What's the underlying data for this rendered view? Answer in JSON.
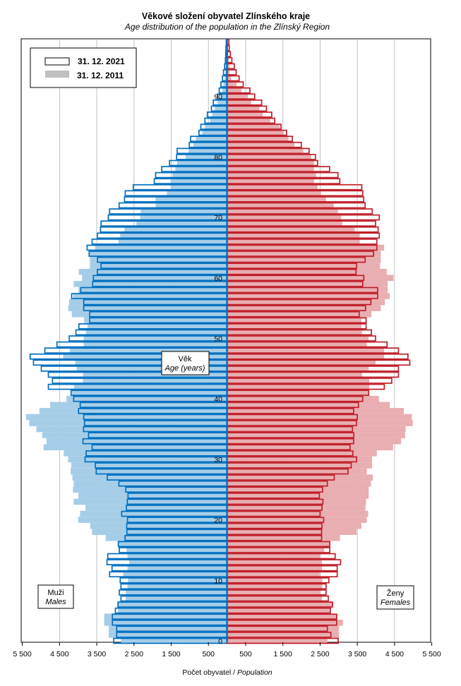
{
  "chart_data": {
    "type": "bar",
    "orientation": "horizontal-population-pyramid",
    "title": "Věkové složení obyvatel Zlínského kraje",
    "subtitle": "Age distribution of the population  in the Zlínský Region",
    "xlabel_cz": "Počet obyvatel /",
    "xlabel_en": "Population",
    "ylabel_cz": "Věk",
    "ylabel_en": "Age (years)",
    "left_label_cz": "Muži",
    "left_label_en": "Males",
    "right_label_cz": "Ženy",
    "right_label_en": "Females",
    "xlim": [
      -5500,
      5500
    ],
    "x_tick_values": [
      -5500,
      -4500,
      -3500,
      -2500,
      -1500,
      -500,
      500,
      1500,
      2500,
      3500,
      4500,
      5500
    ],
    "x_tick_labels": [
      "5 500",
      "4 500",
      "3 500",
      "2 500",
      "1 500",
      "500",
      "500",
      "1 500",
      "2 500",
      "3 500",
      "4 500",
      "5 500"
    ],
    "y_tick_labels": [
      "0",
      "10",
      "20",
      "30",
      "40",
      "50",
      "60",
      "70",
      "80",
      "90"
    ],
    "grid": true,
    "legend_position": "top-left",
    "legend": [
      {
        "label": "31. 12. 2021",
        "style": "outline"
      },
      {
        "label": "31. 12. 2011",
        "style": "filled"
      }
    ],
    "colors": {
      "male_fill": "#a6cde8",
      "male_outline": "#0070c0",
      "female_fill": "#e8aeb2",
      "female_outline": "#c0202a",
      "grid": "#c0c0c0"
    },
    "age_start": 0,
    "series": [
      {
        "name": "31. 12. 2021",
        "sex": "Muži",
        "values": [
          3045,
          2965,
          2965,
          3080,
          3080,
          3000,
          2930,
          2850,
          2895,
          2850,
          2870,
          3155,
          3090,
          3225,
          3205,
          2895,
          2920,
          2740,
          2690,
          2695,
          2675,
          2830,
          2705,
          2680,
          2660,
          2720,
          2905,
          3220,
          3515,
          3540,
          3815,
          3785,
          3625,
          3870,
          3720,
          3855,
          3830,
          3850,
          3990,
          3945,
          4120,
          4190,
          4800,
          4690,
          4800,
          4990,
          5200,
          5290,
          4895,
          4570,
          4240,
          4060,
          3980,
          3690,
          3690,
          3850,
          3850,
          4175,
          3930,
          3610,
          3590,
          3485,
          3385,
          3480,
          3705,
          3760,
          3625,
          3485,
          3400,
          3385,
          3190,
          3155,
          2900,
          2755,
          2735,
          2520,
          1955,
          1920,
          1755,
          1545,
          1355,
          1340,
          1015,
          980,
          755,
          705,
          595,
          530,
          420,
          370,
          255,
          210,
          165,
          125,
          95,
          65,
          45,
          35,
          30,
          20
        ]
      },
      {
        "name": "31. 12. 2011",
        "sex": "Muži",
        "values": [
          2850,
          3180,
          3180,
          3300,
          3300,
          2930,
          2930,
          2725,
          2725,
          2675,
          2660,
          2790,
          2675,
          2630,
          2675,
          2700,
          2920,
          3260,
          3625,
          3675,
          4000,
          3950,
          3805,
          4120,
          3995,
          4140,
          4120,
          4155,
          4205,
          4185,
          4270,
          4385,
          4930,
          4850,
          4965,
          5125,
          5315,
          5400,
          5040,
          4750,
          4315,
          4170,
          4110,
          3870,
          3870,
          4040,
          4080,
          4400,
          4225,
          3850,
          3850,
          3790,
          3750,
          3840,
          4170,
          4265,
          4240,
          4135,
          3990,
          4120,
          3895,
          3980,
          3685,
          3685,
          3690,
          3545,
          2920,
          2870,
          2755,
          2435,
          2335,
          2320,
          1920,
          1920,
          1615,
          1515,
          1515,
          1465,
          1390,
          1340,
          1110,
          1030,
          905,
          835,
          665,
          595,
          455,
          400,
          325,
          255,
          195,
          130,
          95,
          65,
          50,
          45,
          30,
          20,
          15,
          10
        ]
      },
      {
        "name": "31. 12. 2021",
        "sex": "Ženy",
        "values": [
          2985,
          2790,
          2695,
          2945,
          2945,
          2775,
          2835,
          2720,
          2660,
          2660,
          2735,
          2960,
          2960,
          3050,
          2905,
          2760,
          2760,
          2540,
          2540,
          2550,
          2595,
          2500,
          2550,
          2575,
          2480,
          2565,
          2695,
          2880,
          3250,
          3335,
          3480,
          3380,
          3305,
          3400,
          3405,
          3370,
          3480,
          3500,
          3400,
          3530,
          3645,
          3805,
          4225,
          4425,
          4605,
          4605,
          4910,
          4860,
          4605,
          4300,
          3990,
          3880,
          3735,
          3735,
          3550,
          3720,
          3865,
          4045,
          4045,
          3645,
          3675,
          3465,
          3480,
          3710,
          3935,
          4025,
          4025,
          4090,
          4060,
          3990,
          4090,
          3900,
          3710,
          3670,
          3645,
          3620,
          3030,
          2980,
          2755,
          2435,
          2375,
          2205,
          1995,
          1755,
          1600,
          1450,
          1280,
          1200,
          1060,
          930,
          745,
          615,
          435,
          325,
          245,
          195,
          130,
          90,
          60,
          50
        ]
      },
      {
        "name": "31. 12. 2011",
        "sex": "Ženy",
        "values": [
          2695,
          3010,
          3010,
          3115,
          2965,
          2775,
          2835,
          2550,
          2515,
          2560,
          2560,
          2485,
          2550,
          2550,
          2500,
          2610,
          2760,
          3035,
          3480,
          3610,
          3755,
          3790,
          3720,
          3735,
          3805,
          3805,
          3865,
          3915,
          3755,
          3895,
          3895,
          4025,
          4460,
          4675,
          4785,
          4800,
          4990,
          4965,
          4750,
          4370,
          4080,
          3805,
          3820,
          3820,
          3625,
          3805,
          3990,
          4220,
          4220,
          3755,
          3805,
          3625,
          3610,
          3610,
          3880,
          4130,
          4240,
          4370,
          4315,
          4315,
          4475,
          4290,
          4110,
          4130,
          4130,
          4220,
          3565,
          3565,
          3430,
          3095,
          3065,
          2980,
          2865,
          2660,
          2525,
          2430,
          2335,
          2390,
          2335,
          2335,
          2260,
          2050,
          1810,
          1650,
          1520,
          1415,
          1160,
          965,
          870,
          650,
          560,
          385,
          255,
          110,
          70,
          70,
          50,
          30,
          20,
          10
        ]
      }
    ]
  }
}
